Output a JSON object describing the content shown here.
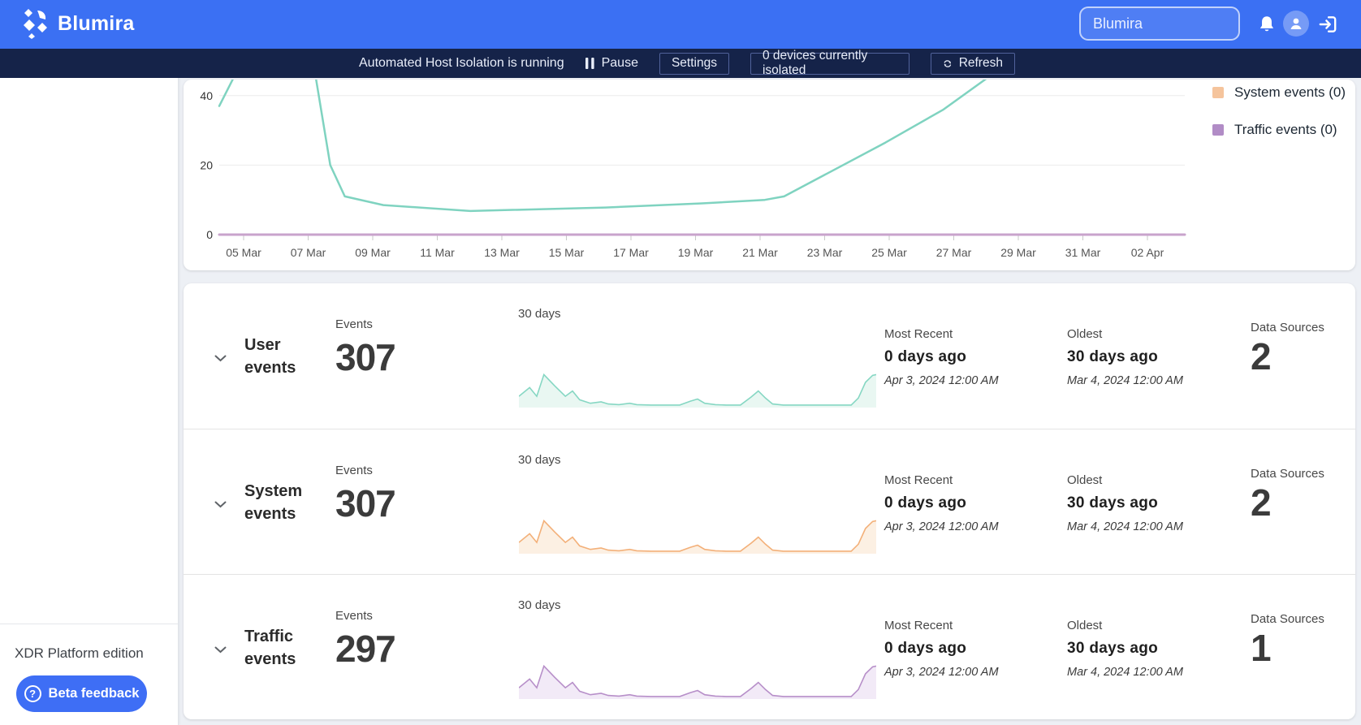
{
  "topbar": {
    "brand": "Blumira",
    "search_value": "Blumira",
    "icons": {
      "bell": "notification-bell",
      "avatar": "user-avatar",
      "logout": "sign-out"
    }
  },
  "isolation_bar": {
    "status": "Automated Host Isolation is running",
    "pause_label": "Pause",
    "settings_label": "Settings",
    "isolated_label": "0 devices currently isolated",
    "refresh_label": "Refresh"
  },
  "sidebar": {
    "edition": "XDR Platform edition",
    "beta_button": "Beta feedback"
  },
  "chart": {
    "y_ticks": [
      0,
      20,
      40
    ],
    "x_ticks": [
      "05 Mar",
      "07 Mar",
      "09 Mar",
      "11 Mar",
      "13 Mar",
      "15 Mar",
      "17 Mar",
      "19 Mar",
      "21 Mar",
      "23 Mar",
      "25 Mar",
      "27 Mar",
      "29 Mar",
      "31 Mar",
      "02 Apr"
    ],
    "legend": [
      {
        "label": "System events (0)",
        "color": "#f5c49c"
      },
      {
        "label": "Traffic events (0)",
        "color": "#b18cc6"
      }
    ],
    "series": [
      {
        "name": "User events",
        "color": "#7fd3c0",
        "width": 2.5,
        "points": [
          [
            0,
            37
          ],
          [
            0.02,
            48
          ],
          [
            0.05,
            62
          ],
          [
            0.09,
            62
          ],
          [
            0.115,
            20
          ],
          [
            0.13,
            11
          ],
          [
            0.17,
            8.5
          ],
          [
            0.26,
            6.8
          ],
          [
            0.4,
            7.8
          ],
          [
            0.5,
            9
          ],
          [
            0.565,
            10
          ],
          [
            0.585,
            11
          ],
          [
            0.69,
            26.5
          ],
          [
            0.75,
            36
          ],
          [
            0.8,
            46
          ],
          [
            0.83,
            53
          ],
          [
            0.86,
            60
          ]
        ]
      },
      {
        "name": "Traffic events",
        "color": "#c9a3cc",
        "width": 3,
        "points": [
          [
            0,
            0
          ],
          [
            1,
            0
          ]
        ]
      }
    ]
  },
  "chart_data": {
    "type": "line",
    "title": "",
    "xlabel": "",
    "ylabel": "",
    "ylim": [
      0,
      47
    ],
    "grid": true,
    "legend_position": "right",
    "legend_visible": [
      "System events (0)",
      "Traffic events (0)"
    ],
    "clipped_top": true,
    "x_ticks": [
      "05 Mar",
      "07 Mar",
      "09 Mar",
      "11 Mar",
      "13 Mar",
      "15 Mar",
      "17 Mar",
      "19 Mar",
      "21 Mar",
      "23 Mar",
      "25 Mar",
      "27 Mar",
      "29 Mar",
      "31 Mar",
      "02 Apr"
    ],
    "series": [
      {
        "name": "User events (teal line, peak clipped above ~47)",
        "points_by_date": {
          "04 Mar": 37,
          "05 Mar": ">47",
          "07 Mar": ">47",
          "08 Mar": 13,
          "10 Mar": 9,
          "12 Mar": 7,
          "15 Mar": 8,
          "19 Mar": 9,
          "21 Mar": 11,
          "23 Mar": 18,
          "25 Mar": 26,
          "27 Mar": 37,
          "28 Mar": ">47"
        }
      },
      {
        "name": "System events",
        "value_all_dates": 0
      },
      {
        "name": "Traffic events",
        "value_all_dates": 0
      }
    ]
  },
  "sparkline": {
    "points": [
      [
        0,
        30
      ],
      [
        3,
        55
      ],
      [
        5,
        30
      ],
      [
        7,
        92
      ],
      [
        10,
        60
      ],
      [
        13,
        30
      ],
      [
        15,
        45
      ],
      [
        17,
        20
      ],
      [
        20,
        10
      ],
      [
        23,
        14
      ],
      [
        25,
        8
      ],
      [
        28,
        6
      ],
      [
        31,
        10
      ],
      [
        33,
        6
      ],
      [
        37,
        5
      ],
      [
        41,
        5
      ],
      [
        45,
        5
      ],
      [
        48,
        16
      ],
      [
        50,
        22
      ],
      [
        52,
        10
      ],
      [
        55,
        6
      ],
      [
        58,
        5
      ],
      [
        62,
        5
      ],
      [
        65,
        28
      ],
      [
        67,
        45
      ],
      [
        69,
        25
      ],
      [
        71,
        8
      ],
      [
        74,
        5
      ],
      [
        78,
        5
      ],
      [
        82,
        5
      ],
      [
        86,
        5
      ],
      [
        90,
        5
      ],
      [
        93,
        5
      ],
      [
        95,
        25
      ],
      [
        97,
        70
      ],
      [
        99,
        90
      ],
      [
        100,
        92
      ]
    ]
  },
  "events_rows": [
    {
      "title": "User events",
      "events_label": "Events",
      "events_value": "307",
      "window_label": "30 days",
      "most_recent_label": "Most Recent",
      "most_recent_value": "0 days ago",
      "most_recent_date": "Apr 3, 2024 12:00 AM",
      "oldest_label": "Oldest",
      "oldest_value": "30 days ago",
      "oldest_date": "Mar 4, 2024 12:00 AM",
      "data_sources_label": "Data Sources",
      "data_sources_value": "2",
      "spark_color": "#86d7c3",
      "spark_fill": "#e9f7f2"
    },
    {
      "title": "System events",
      "events_label": "Events",
      "events_value": "307",
      "window_label": "30 days",
      "most_recent_label": "Most Recent",
      "most_recent_value": "0 days ago",
      "most_recent_date": "Apr 3, 2024 12:00 AM",
      "oldest_label": "Oldest",
      "oldest_value": "30 days ago",
      "oldest_date": "Mar 4, 2024 12:00 AM",
      "data_sources_label": "Data Sources",
      "data_sources_value": "2",
      "spark_color": "#f3b079",
      "spark_fill": "#fcf0e3"
    },
    {
      "title": "Traffic events",
      "events_label": "Events",
      "events_value": "297",
      "window_label": "30 days",
      "most_recent_label": "Most Recent",
      "most_recent_value": "0 days ago",
      "most_recent_date": "Apr 3, 2024 12:00 AM",
      "oldest_label": "Oldest",
      "oldest_value": "30 days ago",
      "oldest_date": "Mar 4, 2024 12:00 AM",
      "data_sources_label": "Data Sources",
      "data_sources_value": "1",
      "spark_color": "#b78fc9",
      "spark_fill": "#f2eaf7"
    }
  ],
  "colors": {
    "topbar_blue": "#3b70f3",
    "navbar_navy": "#152349",
    "page_bg": "#edf0f5",
    "accent_blue": "#3e6ef5",
    "user_teal": "#7fd3c0",
    "traffic_purple": "#c9a3cc",
    "legend_system": "#f5c49c",
    "legend_traffic": "#b18cc6"
  }
}
